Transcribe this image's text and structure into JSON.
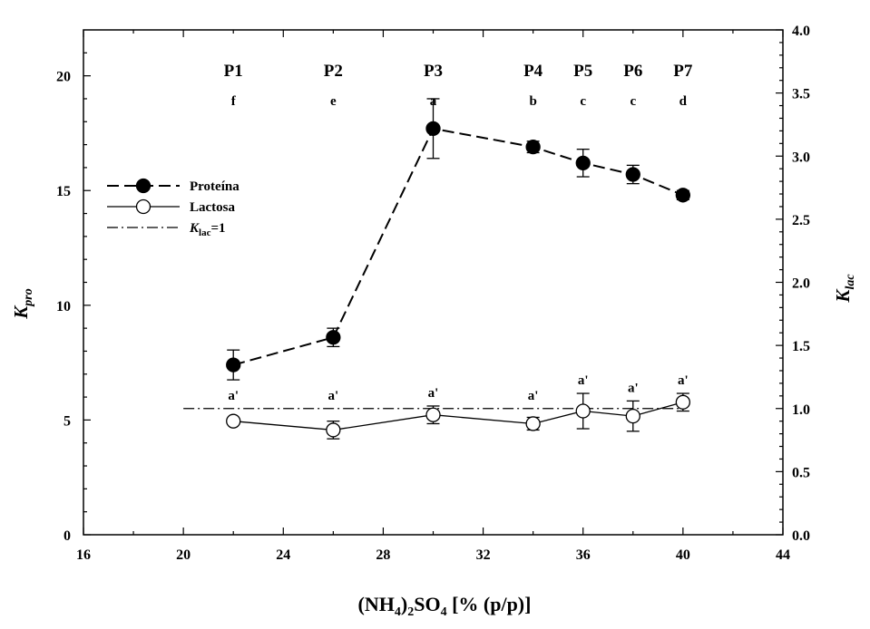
{
  "chart_data": {
    "type": "line",
    "xlabel": {
      "main": "(NH",
      "sub1": "4",
      "mid": ")",
      "sub2": "2",
      "mid2": "SO",
      "sub3": "4",
      "tail": " [% (p/p)]"
    },
    "ylabel_left": {
      "main": "K",
      "sub": "pro"
    },
    "ylabel_right": {
      "main": "K",
      "sub": "lac"
    },
    "xlim": [
      16,
      44
    ],
    "xticks": [
      16,
      20,
      24,
      28,
      32,
      36,
      40,
      44
    ],
    "ylim_left": [
      0,
      22
    ],
    "yticks_left": [
      0,
      5,
      10,
      15,
      20
    ],
    "ylim_right": [
      0,
      4
    ],
    "yticks_right": [
      "0.0",
      "0.5",
      "1.0",
      "1.5",
      "2.0",
      "2.5",
      "3.0",
      "3.5",
      "4.0"
    ],
    "series": [
      {
        "name": "Proteína",
        "axis": "left",
        "marker": "filled-circle",
        "line": "dashed",
        "x": [
          22,
          26,
          30,
          34,
          36,
          38,
          40
        ],
        "y": [
          7.4,
          8.6,
          17.7,
          16.9,
          16.2,
          15.7,
          14.8
        ],
        "err": [
          0.65,
          0.4,
          1.3,
          0.25,
          0.6,
          0.4,
          0.2
        ]
      },
      {
        "name": "Lactosa",
        "axis": "right",
        "marker": "open-circle",
        "line": "solid",
        "x": [
          22,
          26,
          30,
          34,
          36,
          38,
          40
        ],
        "y": [
          0.9,
          0.83,
          0.95,
          0.88,
          0.98,
          0.94,
          1.05
        ],
        "err": [
          0.0,
          0.07,
          0.07,
          0.05,
          0.14,
          0.12,
          0.07
        ]
      }
    ],
    "reference_line": {
      "label_main": "K",
      "label_sub": "lac",
      "label_tail": "=1",
      "axis": "right",
      "y": 1,
      "x_from": 20,
      "x_to": 40
    },
    "phase_labels": [
      {
        "label": "P1",
        "letter": "f",
        "x": 22
      },
      {
        "label": "P2",
        "letter": "e",
        "x": 26
      },
      {
        "label": "P3",
        "letter": "a",
        "x": 30
      },
      {
        "label": "P4",
        "letter": "b",
        "x": 34
      },
      {
        "label": "P5",
        "letter": "c",
        "x": 36
      },
      {
        "label": "P6",
        "letter": "c",
        "x": 38
      },
      {
        "label": "P7",
        "letter": "d",
        "x": 40
      }
    ],
    "lactosa_letters": "a'",
    "legend_position": "upper-left",
    "grid": false
  }
}
